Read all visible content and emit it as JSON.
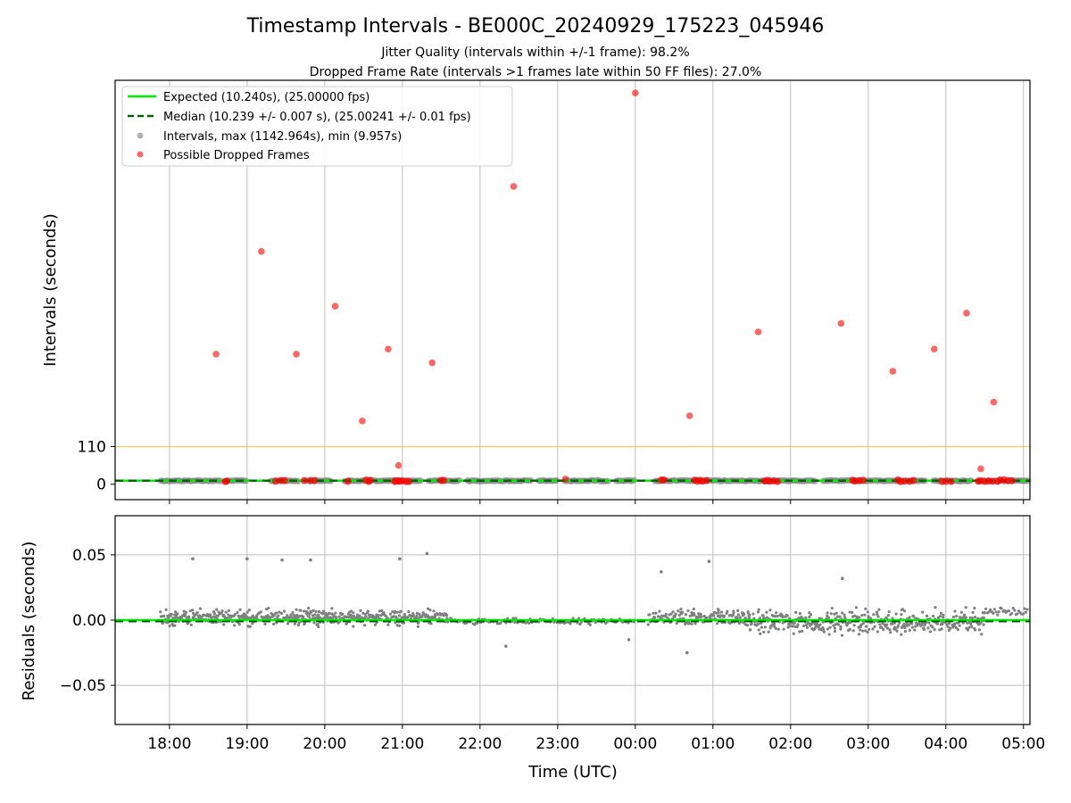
{
  "figure": {
    "title": "Timestamp Intervals - BE000C_20240929_175223_045946",
    "subtitle1": "Jitter Quality (intervals within +/-1 frame): 98.2%",
    "subtitle2": "Dropped Frame Rate (intervals >1 frames late within 50 FF files): 27.0%"
  },
  "chart_data": [
    {
      "type": "scatter",
      "ylabel": "Intervals (seconds)",
      "ylim": [
        -45,
        1180
      ],
      "y_ticks": [
        0,
        110
      ],
      "y_tick_labels": [
        "0",
        "110"
      ],
      "grid": "vertical",
      "legend_position": "top-left",
      "legend": [
        "Expected (10.240s), (25.00000 fps)",
        "Median (10.239 +/- 0.007 s), (25.00241 +/- 0.01 fps)",
        "Intervals, max (1142.964s), min (9.957s)",
        "Possible Dropped Frames"
      ],
      "expected_interval": 10.24,
      "median_interval": 10.239,
      "threshold_line": 110,
      "interval_segments": [
        [
          "17:53",
          "18:40"
        ],
        [
          "18:45",
          "19:00"
        ],
        [
          "19:18",
          "19:40"
        ],
        [
          "19:45",
          "20:05"
        ],
        [
          "20:15",
          "21:15"
        ],
        [
          "21:20",
          "21:45"
        ],
        [
          "21:50",
          "22:40"
        ],
        [
          "22:45",
          "23:00"
        ],
        [
          "23:05",
          "23:40"
        ],
        [
          "23:45",
          "00:00"
        ],
        [
          "00:15",
          "02:20"
        ],
        [
          "02:25",
          "03:45"
        ],
        [
          "03:50",
          "04:20"
        ],
        [
          "04:25",
          "05:04"
        ]
      ],
      "dropped_frames": [
        {
          "x": "18:36",
          "y": 380
        },
        {
          "x": "19:11",
          "y": 680
        },
        {
          "x": "19:38",
          "y": 380
        },
        {
          "x": "20:08",
          "y": 520
        },
        {
          "x": "20:29",
          "y": 185
        },
        {
          "x": "20:49",
          "y": 395
        },
        {
          "x": "20:57",
          "y": 55
        },
        {
          "x": "21:23",
          "y": 355
        },
        {
          "x": "22:26",
          "y": 870
        },
        {
          "x": "23:06",
          "y": 15
        },
        {
          "x": "00:00",
          "y": 1142.964
        },
        {
          "x": "00:42",
          "y": 200
        },
        {
          "x": "01:35",
          "y": 445
        },
        {
          "x": "02:39",
          "y": 470
        },
        {
          "x": "03:19",
          "y": 330
        },
        {
          "x": "03:51",
          "y": 395
        },
        {
          "x": "04:16",
          "y": 500
        },
        {
          "x": "04:37",
          "y": 240
        },
        {
          "x": "04:27",
          "y": 45
        }
      ],
      "dropped_near_baseline": [
        "18:43",
        "18:44",
        "19:22",
        "19:26",
        "19:29",
        "19:44",
        "19:49",
        "19:52",
        "20:18",
        "20:32",
        "20:34",
        "20:35",
        "20:54",
        "20:55",
        "20:57",
        "20:58",
        "21:00",
        "21:03",
        "21:05",
        "21:30",
        "21:32",
        "00:20",
        "00:22",
        "00:46",
        "00:48",
        "00:50",
        "00:52",
        "00:55",
        "01:40",
        "01:42",
        "01:44",
        "01:47",
        "01:50",
        "02:48",
        "02:50",
        "02:53",
        "02:56",
        "03:23",
        "03:25",
        "03:28",
        "03:32",
        "03:35",
        "03:57",
        "04:00",
        "04:04",
        "04:25",
        "04:27",
        "04:30",
        "04:33",
        "04:36",
        "04:40",
        "04:42",
        "04:45",
        "04:48",
        "04:51"
      ]
    },
    {
      "type": "scatter",
      "ylabel": "Residuals (seconds)",
      "xlabel": "Time (UTC)",
      "ylim": [
        -0.08,
        0.08
      ],
      "y_ticks": [
        0.05,
        0.0,
        -0.05
      ],
      "y_tick_labels": [
        "0.05",
        "0.00",
        "−0.05"
      ],
      "grid": "both",
      "x_ticks": [
        "18:00",
        "19:00",
        "20:00",
        "21:00",
        "22:00",
        "23:00",
        "00:00",
        "01:00",
        "02:00",
        "03:00",
        "04:00",
        "05:00"
      ],
      "x_range": [
        "17:18",
        "05:05"
      ],
      "outliers": [
        {
          "x": "18:18",
          "y": 0.047
        },
        {
          "x": "19:00",
          "y": 0.047
        },
        {
          "x": "19:27",
          "y": 0.046
        },
        {
          "x": "19:49",
          "y": 0.046
        },
        {
          "x": "20:58",
          "y": 0.047
        },
        {
          "x": "21:19",
          "y": 0.051
        },
        {
          "x": "00:20",
          "y": 0.037
        },
        {
          "x": "00:40",
          "y": -0.025
        },
        {
          "x": "00:57",
          "y": 0.045
        },
        {
          "x": "02:40",
          "y": 0.032
        },
        {
          "x": "22:20",
          "y": -0.02
        },
        {
          "x": "23:55",
          "y": -0.015
        }
      ],
      "band_segments": [
        {
          "start": "17:53",
          "end": "21:35",
          "center": 0.002,
          "spread": 0.006
        },
        {
          "start": "21:35",
          "end": "00:00",
          "center": -0.001,
          "spread": 0.003
        },
        {
          "start": "00:10",
          "end": "01:25",
          "center": 0.002,
          "spread": 0.006
        },
        {
          "start": "01:25",
          "end": "04:30",
          "center": -0.001,
          "spread": 0.009
        },
        {
          "start": "04:30",
          "end": "05:04",
          "center": 0.006,
          "spread": 0.004
        }
      ]
    }
  ]
}
